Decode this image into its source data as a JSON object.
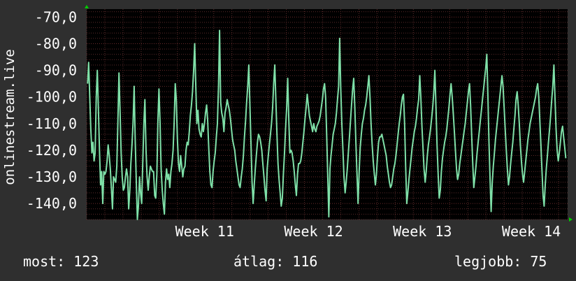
{
  "chart_data": {
    "type": "line",
    "ylabel": "onlinestream.live",
    "ylim": [
      -146,
      -67
    ],
    "yticks": [
      "-70,0",
      "-80,0",
      "-90,0",
      "-100,0",
      "-110,0",
      "-120,0",
      "-130,0",
      "-140,0"
    ],
    "ytick_values": [
      -70,
      -80,
      -90,
      -100,
      -110,
      -120,
      -130,
      -140
    ],
    "xticks": [
      "Week 11",
      "Week 12",
      "Week 13",
      "Week 14"
    ],
    "xtick_positions": [
      10.5,
      16.5,
      22.5,
      28.5
    ],
    "xlim": [
      4,
      30.5
    ],
    "grid": true,
    "colors": {
      "line": "#7fe0a8",
      "background": "#000000",
      "page": "#2f2f2f",
      "grid": "#5a2a2a",
      "grid_major": "#6a2a2a",
      "axis_arrow": "#00cc00",
      "text": "#ffffff"
    },
    "series": [
      {
        "values": [
          -95,
          -87,
          -100,
          -112,
          -121,
          -117,
          -124,
          -121,
          -100,
          -90,
          -105,
          -120,
          -133,
          -128,
          -140,
          -128,
          -129,
          -128,
          -124,
          -118,
          -122,
          -127,
          -134,
          -142,
          -130,
          -131,
          -132,
          -126,
          -110,
          -91,
          -105,
          -121,
          -130,
          -135,
          -134,
          -130,
          -127,
          -130,
          -142,
          -135,
          -125,
          -118,
          -110,
          -96,
          -116,
          -131,
          -146,
          -141,
          -130,
          -136,
          -140,
          -125,
          -110,
          -101,
          -120,
          -130,
          -135,
          -130,
          -126,
          -127,
          -128,
          -128,
          -137,
          -138,
          -129,
          -109,
          -97,
          -110,
          -127,
          -135,
          -140,
          -144,
          -132,
          -127,
          -131,
          -129,
          -134,
          -128,
          -125,
          -120,
          -110,
          -95,
          -101,
          -116,
          -125,
          -128,
          -122,
          -126,
          -130,
          -127,
          -126,
          -120,
          -117,
          -118,
          -113,
          -107,
          -103,
          -98,
          -90,
          -80,
          -96,
          -110,
          -105,
          -112,
          -114,
          -115,
          -110,
          -113,
          -110,
          -106,
          -103,
          -109,
          -119,
          -128,
          -133,
          -134,
          -128,
          -124,
          -121,
          -115,
          -110,
          -96,
          -75,
          -102,
          -106,
          -108,
          -113,
          -106,
          -104,
          -101,
          -103,
          -105,
          -108,
          -112,
          -116,
          -118,
          -120,
          -124,
          -127,
          -130,
          -133,
          -134,
          -130,
          -127,
          -122,
          -115,
          -109,
          -102,
          -96,
          -88,
          -103,
          -117,
          -132,
          -140,
          -133,
          -127,
          -122,
          -117,
          -114,
          -115,
          -117,
          -120,
          -125,
          -130,
          -135,
          -139,
          -127,
          -122,
          -118,
          -114,
          -110,
          -104,
          -95,
          -88,
          -101,
          -114,
          -125,
          -131,
          -136,
          -141,
          -138,
          -129,
          -121,
          -112,
          -104,
          -93,
          -109,
          -121,
          -120,
          -121,
          -124,
          -128,
          -133,
          -137,
          -129,
          -125,
          -125,
          -124,
          -121,
          -117,
          -113,
          -108,
          -104,
          -99,
          -103,
          -107,
          -109,
          -111,
          -113,
          -110,
          -112,
          -113,
          -111,
          -110,
          -109,
          -107,
          -104,
          -101,
          -97,
          -95,
          -100,
          -115,
          -130,
          -145,
          -127,
          -122,
          -118,
          -114,
          -112,
          -110,
          -106,
          -101,
          -96,
          -78,
          -97,
          -110,
          -120,
          -130,
          -136,
          -132,
          -127,
          -121,
          -115,
          -109,
          -103,
          -97,
          -93,
          -104,
          -117,
          -129,
          -140,
          -128,
          -119,
          -114,
          -110,
          -108,
          -105,
          -103,
          -100,
          -96,
          -92,
          -100,
          -110,
          -118,
          -124,
          -129,
          -133,
          -129,
          -122,
          -117,
          -115,
          -115,
          -114,
          -116,
          -118,
          -120,
          -122,
          -126,
          -129,
          -132,
          -134,
          -133,
          -130,
          -127,
          -125,
          -122,
          -118,
          -114,
          -110,
          -107,
          -103,
          -100,
          -99,
          -110,
          -126,
          -140,
          -136,
          -131,
          -127,
          -123,
          -119,
          -116,
          -113,
          -111,
          -108,
          -104,
          -101,
          -92,
          -100,
          -111,
          -119,
          -127,
          -132,
          -128,
          -122,
          -118,
          -115,
          -112,
          -108,
          -104,
          -98,
          -90,
          -104,
          -118,
          -129,
          -138,
          -135,
          -128,
          -123,
          -120,
          -117,
          -115,
          -112,
          -108,
          -104,
          -99,
          -95,
          -100,
          -106,
          -113,
          -120,
          -127,
          -131,
          -129,
          -125,
          -122,
          -119,
          -116,
          -113,
          -110,
          -106,
          -102,
          -98,
          -95,
          -103,
          -114,
          -125,
          -134,
          -130,
          -126,
          -121,
          -117,
          -113,
          -109,
          -105,
          -101,
          -97,
          -93,
          -89,
          -84,
          -100,
          -117,
          -131,
          -143,
          -132,
          -126,
          -121,
          -116,
          -112,
          -108,
          -104,
          -100,
          -96,
          -92,
          -96,
          -104,
          -112,
          -120,
          -127,
          -133,
          -130,
          -125,
          -121,
          -117,
          -112,
          -107,
          -101,
          -98,
          -103,
          -110,
          -118,
          -124,
          -129,
          -132,
          -128,
          -124,
          -120,
          -116,
          -113,
          -110,
          -108,
          -106,
          -104,
          -102,
          -100,
          -97,
          -95,
          -100,
          -109,
          -118,
          -128,
          -137,
          -141,
          -133,
          -127,
          -122,
          -117,
          -112,
          -107,
          -101,
          -96,
          -88,
          -100,
          -112,
          -120,
          -124,
          -121,
          -117,
          -113,
          -111,
          -115,
          -119,
          -123
        ],
        "x_range": [
          4.05,
          30.4
        ]
      }
    ]
  },
  "stats": {
    "current_label": "most:",
    "current_value": "123",
    "average_label": "átlag:",
    "average_value": "116",
    "best_label": "legjobb:",
    "best_value": "75"
  }
}
